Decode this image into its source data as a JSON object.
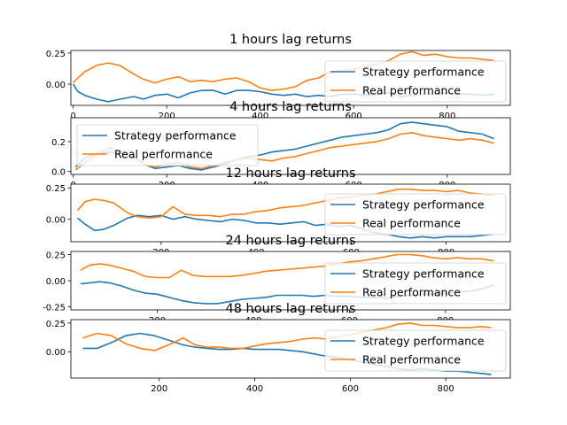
{
  "chart_data": [
    {
      "type": "line",
      "title": "1 hours lag returns",
      "xlim": [
        -5,
        935
      ],
      "ylim": [
        -0.17,
        0.27
      ],
      "xticks": [
        0,
        200,
        400,
        600,
        800
      ],
      "yticks": [
        -0.0,
        0.25
      ],
      "ytick_labels": [
        "0.00",
        "0.25"
      ],
      "legend": "right",
      "series": [
        {
          "name": "Strategy performance",
          "color": "#1f77b4",
          "x": [
            0,
            10,
            25,
            50,
            75,
            100,
            130,
            150,
            175,
            200,
            225,
            250,
            275,
            300,
            325,
            350,
            375,
            400,
            425,
            450,
            475,
            500,
            525,
            550,
            575,
            600,
            625,
            650,
            675,
            700,
            725,
            750,
            775,
            800,
            825,
            850,
            875,
            900
          ],
          "y": [
            0.0,
            -0.06,
            -0.09,
            -0.12,
            -0.14,
            -0.12,
            -0.1,
            -0.12,
            -0.09,
            -0.08,
            -0.11,
            -0.07,
            -0.05,
            -0.05,
            -0.08,
            -0.05,
            -0.05,
            -0.06,
            -0.08,
            -0.09,
            -0.08,
            -0.1,
            -0.09,
            -0.1,
            -0.08,
            -0.08,
            -0.09,
            -0.08,
            -0.07,
            -0.1,
            -0.09,
            -0.08,
            -0.08,
            -0.07,
            -0.08,
            -0.08,
            -0.09,
            -0.08
          ]
        },
        {
          "name": "Real performance",
          "color": "#ff7f0e",
          "x": [
            0,
            10,
            25,
            50,
            75,
            100,
            130,
            150,
            175,
            200,
            225,
            250,
            275,
            300,
            325,
            350,
            375,
            400,
            425,
            450,
            475,
            500,
            525,
            550,
            575,
            600,
            625,
            650,
            675,
            700,
            725,
            750,
            775,
            800,
            825,
            850,
            875,
            900
          ],
          "y": [
            0.01,
            0.05,
            0.1,
            0.15,
            0.17,
            0.15,
            0.08,
            0.04,
            0.01,
            0.04,
            0.06,
            0.02,
            0.03,
            0.02,
            0.04,
            0.05,
            0.02,
            -0.03,
            -0.05,
            -0.04,
            -0.02,
            0.03,
            0.05,
            0.1,
            0.11,
            0.12,
            0.14,
            0.16,
            0.19,
            0.24,
            0.26,
            0.23,
            0.24,
            0.22,
            0.21,
            0.21,
            0.2,
            0.19
          ]
        }
      ]
    },
    {
      "type": "line",
      "title": "4 hours lag returns",
      "xlim": [
        -5,
        935
      ],
      "ylim": [
        -0.02,
        0.36
      ],
      "xticks": [
        0,
        200,
        400,
        600,
        800
      ],
      "yticks": [
        0.0,
        0.2
      ],
      "ytick_labels": [
        "0.0",
        "0.2"
      ],
      "legend": "upper left",
      "series": [
        {
          "name": "Strategy performance",
          "color": "#1f77b4",
          "x": [
            5,
            25,
            50,
            75,
            100,
            130,
            150,
            175,
            200,
            225,
            250,
            275,
            300,
            325,
            350,
            375,
            400,
            425,
            450,
            475,
            500,
            525,
            550,
            575,
            600,
            625,
            650,
            675,
            700,
            725,
            750,
            775,
            800,
            825,
            850,
            875,
            900
          ],
          "y": [
            0.03,
            0.09,
            0.12,
            0.13,
            0.12,
            0.1,
            0.05,
            0.02,
            0.03,
            0.04,
            0.02,
            0.01,
            0.03,
            0.05,
            0.08,
            0.1,
            0.11,
            0.13,
            0.14,
            0.15,
            0.17,
            0.19,
            0.21,
            0.23,
            0.24,
            0.25,
            0.26,
            0.28,
            0.32,
            0.33,
            0.32,
            0.31,
            0.3,
            0.27,
            0.26,
            0.25,
            0.22
          ]
        },
        {
          "name": "Real performance",
          "color": "#ff7f0e",
          "x": [
            5,
            25,
            50,
            75,
            100,
            130,
            150,
            175,
            200,
            225,
            250,
            275,
            300,
            325,
            350,
            375,
            400,
            425,
            450,
            475,
            500,
            525,
            550,
            575,
            600,
            625,
            650,
            675,
            700,
            725,
            750,
            775,
            800,
            825,
            850,
            875,
            900
          ],
          "y": [
            0.01,
            0.06,
            0.11,
            0.16,
            0.14,
            0.09,
            0.05,
            0.03,
            0.05,
            0.06,
            0.03,
            0.02,
            0.04,
            0.06,
            0.08,
            0.09,
            0.08,
            0.07,
            0.09,
            0.1,
            0.12,
            0.14,
            0.16,
            0.17,
            0.18,
            0.19,
            0.2,
            0.22,
            0.25,
            0.26,
            0.24,
            0.23,
            0.22,
            0.21,
            0.22,
            0.21,
            0.19
          ]
        }
      ]
    },
    {
      "type": "line",
      "title": "12 hours lag returns",
      "xlim": [
        10,
        935
      ],
      "ylim": [
        -0.18,
        0.28
      ],
      "xticks": [
        200,
        400,
        600,
        800
      ],
      "yticks": [
        0.0,
        0.25
      ],
      "ytick_labels": [
        "0.00",
        "0.25"
      ],
      "legend": "right",
      "series": [
        {
          "name": "Strategy performance",
          "color": "#1f77b4",
          "x": [
            24,
            40,
            60,
            80,
            100,
            130,
            150,
            175,
            200,
            225,
            250,
            275,
            300,
            325,
            350,
            375,
            400,
            425,
            450,
            475,
            500,
            525,
            550,
            575,
            600,
            625,
            650,
            675,
            700,
            725,
            750,
            775,
            800,
            825,
            850,
            875,
            900
          ],
          "y": [
            0.01,
            -0.04,
            -0.09,
            -0.08,
            -0.05,
            0.01,
            0.03,
            0.02,
            0.03,
            0.0,
            0.02,
            0.0,
            -0.01,
            -0.02,
            0.0,
            -0.01,
            -0.03,
            -0.03,
            -0.04,
            -0.03,
            -0.02,
            -0.05,
            -0.04,
            -0.06,
            -0.05,
            -0.08,
            -0.11,
            -0.12,
            -0.14,
            -0.15,
            -0.14,
            -0.15,
            -0.14,
            -0.14,
            -0.14,
            -0.13,
            -0.12
          ]
        },
        {
          "name": "Real performance",
          "color": "#ff7f0e",
          "x": [
            24,
            40,
            60,
            80,
            100,
            130,
            150,
            175,
            200,
            225,
            250,
            275,
            300,
            325,
            350,
            375,
            400,
            425,
            450,
            475,
            500,
            525,
            550,
            575,
            600,
            625,
            650,
            675,
            700,
            725,
            750,
            775,
            800,
            825,
            850,
            875,
            900
          ],
          "y": [
            0.07,
            0.14,
            0.16,
            0.15,
            0.13,
            0.05,
            0.02,
            0.01,
            0.02,
            0.1,
            0.04,
            0.03,
            0.03,
            0.02,
            0.04,
            0.04,
            0.06,
            0.07,
            0.09,
            0.1,
            0.11,
            0.13,
            0.15,
            0.17,
            0.18,
            0.19,
            0.2,
            0.22,
            0.24,
            0.24,
            0.23,
            0.23,
            0.22,
            0.23,
            0.21,
            0.2,
            0.19
          ]
        }
      ]
    },
    {
      "type": "line",
      "title": "24 hours lag returns",
      "xlim": [
        20,
        935
      ],
      "ylim": [
        -0.28,
        0.28
      ],
      "xticks": [
        200,
        400,
        600,
        800
      ],
      "yticks": [
        -0.25,
        0.0,
        0.25
      ],
      "ytick_labels": [
        "-0.25",
        "0.00",
        "0.25"
      ],
      "legend": "right",
      "series": [
        {
          "name": "Strategy performance",
          "color": "#1f77b4",
          "x": [
            40,
            60,
            80,
            100,
            125,
            150,
            175,
            200,
            225,
            250,
            275,
            300,
            325,
            350,
            375,
            400,
            425,
            450,
            475,
            500,
            525,
            550,
            575,
            600,
            625,
            650,
            675,
            700,
            725,
            750,
            775,
            800,
            825,
            850,
            875,
            900
          ],
          "y": [
            -0.03,
            -0.02,
            -0.01,
            -0.02,
            -0.05,
            -0.09,
            -0.12,
            -0.13,
            -0.16,
            -0.19,
            -0.21,
            -0.22,
            -0.22,
            -0.2,
            -0.18,
            -0.17,
            -0.16,
            -0.14,
            -0.14,
            -0.14,
            -0.15,
            -0.14,
            -0.15,
            -0.15,
            -0.16,
            -0.16,
            -0.17,
            -0.15,
            -0.14,
            -0.13,
            -0.13,
            -0.12,
            -0.11,
            -0.1,
            -0.08,
            -0.04
          ]
        },
        {
          "name": "Real performance",
          "color": "#ff7f0e",
          "x": [
            40,
            60,
            80,
            100,
            125,
            150,
            175,
            200,
            225,
            250,
            275,
            300,
            325,
            350,
            375,
            400,
            425,
            450,
            475,
            500,
            525,
            550,
            575,
            600,
            625,
            650,
            675,
            700,
            725,
            750,
            775,
            800,
            825,
            850,
            875,
            900
          ],
          "y": [
            0.1,
            0.15,
            0.16,
            0.15,
            0.12,
            0.09,
            0.04,
            0.03,
            0.03,
            0.1,
            0.05,
            0.04,
            0.04,
            0.04,
            0.05,
            0.07,
            0.09,
            0.1,
            0.11,
            0.12,
            0.13,
            0.14,
            0.16,
            0.18,
            0.19,
            0.21,
            0.23,
            0.25,
            0.25,
            0.24,
            0.22,
            0.21,
            0.22,
            0.21,
            0.21,
            0.19
          ]
        }
      ]
    },
    {
      "type": "line",
      "title": "48 hours lag returns",
      "xlim": [
        15,
        935
      ],
      "ylim": [
        -0.23,
        0.28
      ],
      "xticks": [
        200,
        400,
        600,
        800
      ],
      "yticks": [
        0.0,
        0.25
      ],
      "ytick_labels": [
        "0.00",
        "0.25"
      ],
      "legend": "right",
      "series": [
        {
          "name": "Strategy performance",
          "color": "#1f77b4",
          "x": [
            40,
            70,
            100,
            130,
            160,
            190,
            220,
            250,
            275,
            300,
            325,
            350,
            375,
            400,
            425,
            450,
            475,
            500,
            525,
            550,
            575,
            600,
            625,
            650,
            675,
            700,
            725,
            750,
            775,
            800,
            825,
            850,
            875,
            895
          ],
          "y": [
            0.03,
            0.03,
            0.08,
            0.14,
            0.16,
            0.14,
            0.1,
            0.06,
            0.04,
            0.03,
            0.02,
            0.02,
            0.03,
            0.02,
            0.02,
            0.02,
            0.01,
            0.0,
            -0.02,
            -0.04,
            -0.05,
            -0.07,
            -0.09,
            -0.11,
            -0.13,
            -0.15,
            -0.16,
            -0.15,
            -0.16,
            -0.17,
            -0.17,
            -0.18,
            -0.19,
            -0.2
          ]
        },
        {
          "name": "Real performance",
          "color": "#ff7f0e",
          "x": [
            40,
            70,
            100,
            130,
            160,
            190,
            220,
            250,
            275,
            300,
            325,
            350,
            375,
            400,
            425,
            450,
            475,
            500,
            525,
            550,
            575,
            600,
            625,
            650,
            675,
            700,
            725,
            750,
            775,
            800,
            825,
            850,
            875,
            895
          ],
          "y": [
            0.12,
            0.16,
            0.14,
            0.07,
            0.03,
            0.01,
            0.06,
            0.12,
            0.06,
            0.04,
            0.04,
            0.03,
            0.03,
            0.05,
            0.07,
            0.08,
            0.09,
            0.11,
            0.12,
            0.11,
            0.13,
            0.15,
            0.17,
            0.19,
            0.21,
            0.24,
            0.25,
            0.23,
            0.23,
            0.22,
            0.21,
            0.21,
            0.22,
            0.21
          ]
        }
      ]
    }
  ]
}
